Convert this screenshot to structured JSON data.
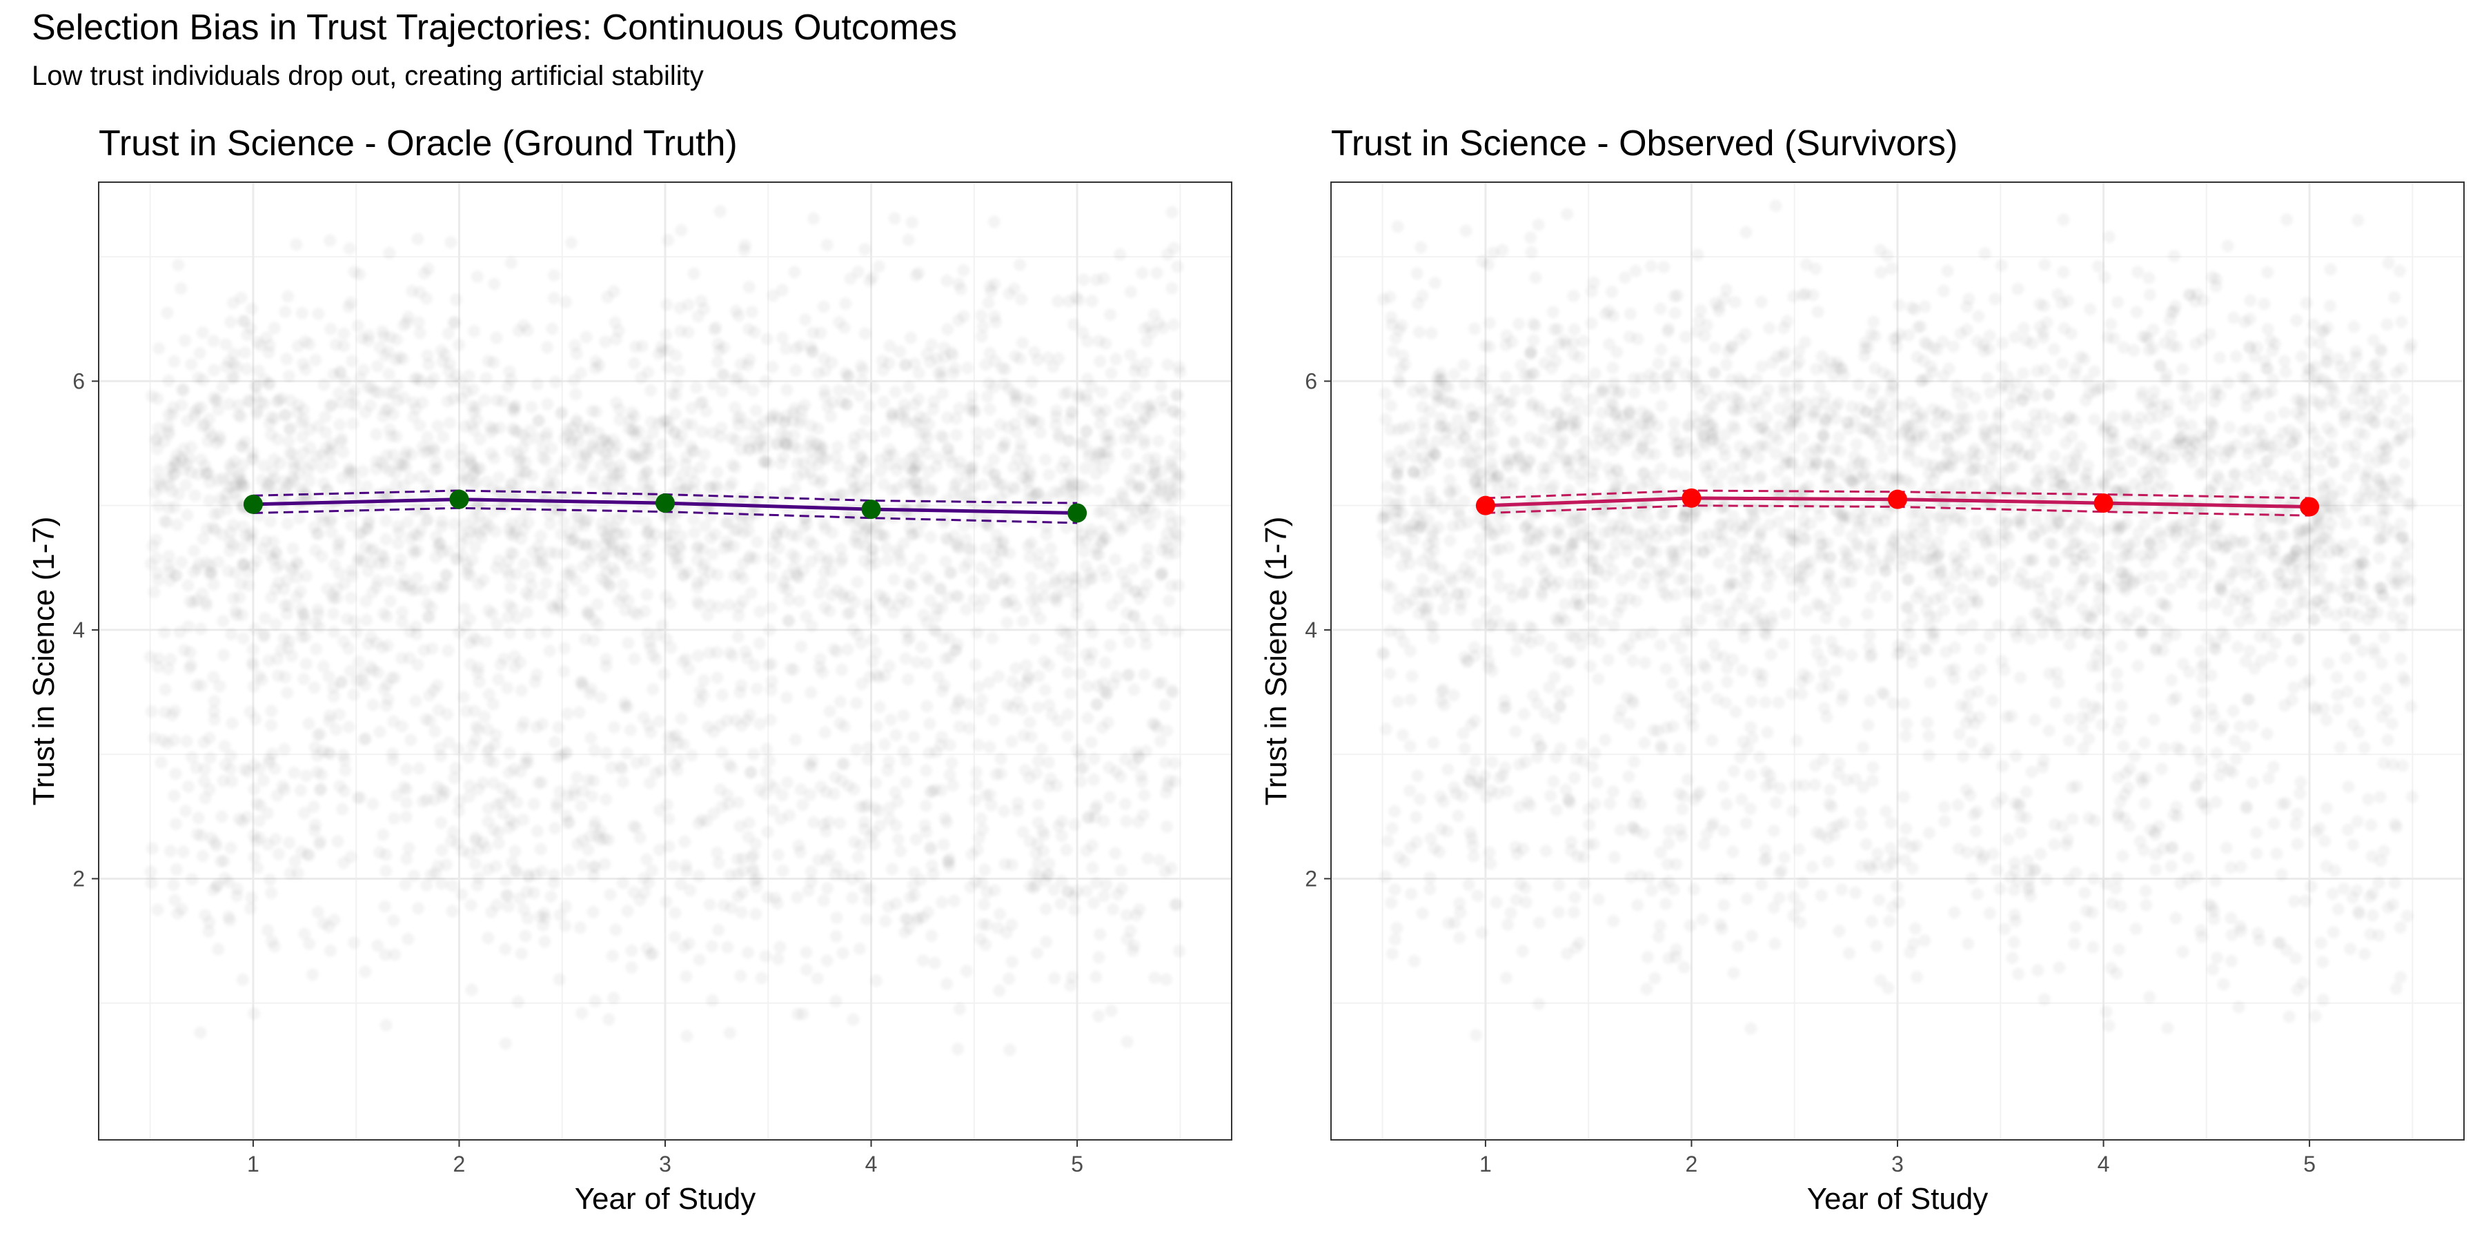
{
  "title": "Selection Bias in Trust Trajectories: Continuous Outcomes",
  "subtitle": "Low trust individuals drop out, creating artificial stability",
  "colors": {
    "points": "#000000",
    "oracle_line": "#4B0082",
    "oracle_points": "#006400",
    "observed_line": "#C2185B",
    "observed_points": "#FF0000",
    "grid": "#EBEBEB",
    "panel_border": "#333333"
  },
  "chart_data": [
    {
      "type": "scatter",
      "title": "Trust in Science - Oracle (Ground Truth)",
      "xlabel": "Year of Study",
      "ylabel": "Trust in Science (1-7)",
      "x_ticks": [
        "1",
        "2",
        "3",
        "4",
        "5"
      ],
      "y_ticks": [
        "2",
        "4",
        "6"
      ],
      "xlim": [
        0.25,
        5.75
      ],
      "ylim": [
        -0.1,
        7.6
      ],
      "grid": true,
      "background_points": "jittered raw responses, heavily overplotted, low alpha",
      "series": [
        {
          "type": "line+points",
          "x": [
            1,
            2,
            3,
            4,
            5
          ],
          "y": [
            5.01,
            5.05,
            5.02,
            4.97,
            4.94
          ],
          "ci_lower": [
            4.94,
            4.98,
            4.95,
            4.9,
            4.86
          ],
          "ci_upper": [
            5.08,
            5.12,
            5.09,
            5.04,
            5.02
          ],
          "line_color": "#4B0082",
          "point_color": "#006400"
        }
      ]
    },
    {
      "type": "scatter",
      "title": "Trust in Science - Observed (Survivors)",
      "xlabel": "Year of Study",
      "ylabel": "Trust in Science (1-7)",
      "x_ticks": [
        "1",
        "2",
        "3",
        "4",
        "5"
      ],
      "y_ticks": [
        "2",
        "4",
        "6"
      ],
      "xlim": [
        0.25,
        5.75
      ],
      "ylim": [
        -0.1,
        7.6
      ],
      "grid": true,
      "background_points": "jittered raw responses of survivors, low alpha",
      "series": [
        {
          "type": "line+points",
          "x": [
            1,
            2,
            3,
            4,
            5
          ],
          "y": [
            5.0,
            5.06,
            5.05,
            5.02,
            4.99
          ],
          "ci_lower": [
            4.94,
            5.0,
            4.99,
            4.95,
            4.92
          ],
          "ci_upper": [
            5.06,
            5.12,
            5.11,
            5.09,
            5.06
          ],
          "line_color": "#C2185B",
          "point_color": "#FF0000"
        }
      ]
    }
  ]
}
